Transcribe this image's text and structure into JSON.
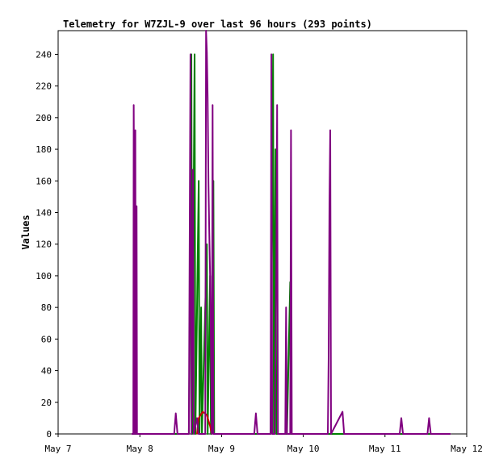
{
  "chart_data": {
    "type": "line",
    "title": "Telemetry for W7ZJL-9 over last 96 hours (293 points)",
    "xlabel": "",
    "ylabel": "Values",
    "x_ticks": [
      "May 7",
      "May 8",
      "May 9",
      "May 10",
      "May 11",
      "May 12"
    ],
    "xlim": [
      0,
      5
    ],
    "ylim": [
      0,
      255
    ],
    "y_ticks": [
      0,
      20,
      40,
      60,
      80,
      100,
      120,
      140,
      160,
      180,
      200,
      220,
      240
    ],
    "grid": false,
    "legend": "none",
    "series": [
      {
        "color": "#008000",
        "points": [
          [
            0.9,
            0
          ],
          [
            1.6,
            0
          ],
          [
            1.62,
            120
          ],
          [
            1.63,
            240
          ],
          [
            1.64,
            0
          ],
          [
            1.67,
            240
          ],
          [
            1.68,
            0
          ],
          [
            1.72,
            160
          ],
          [
            1.73,
            0
          ],
          [
            1.75,
            80
          ],
          [
            1.76,
            0
          ],
          [
            1.82,
            120
          ],
          [
            1.83,
            0
          ],
          [
            1.86,
            100
          ],
          [
            1.87,
            0
          ],
          [
            1.9,
            160
          ],
          [
            1.91,
            0
          ],
          [
            2.6,
            0
          ],
          [
            2.63,
            240
          ],
          [
            2.64,
            0
          ],
          [
            2.66,
            180
          ],
          [
            2.67,
            0
          ],
          [
            2.8,
            0
          ],
          [
            2.84,
            96
          ],
          [
            2.85,
            0
          ],
          [
            4.8,
            0
          ]
        ]
      },
      {
        "color": "#cc0000",
        "points": [
          [
            1.7,
            0
          ],
          [
            1.72,
            10
          ],
          [
            1.77,
            14
          ],
          [
            1.82,
            12
          ],
          [
            1.86,
            5
          ],
          [
            1.88,
            0
          ]
        ]
      },
      {
        "color": "#800080",
        "points": [
          [
            0.9,
            0
          ],
          [
            0.92,
            0
          ],
          [
            0.925,
            208
          ],
          [
            0.93,
            155
          ],
          [
            0.935,
            0
          ],
          [
            0.945,
            192
          ],
          [
            0.95,
            0
          ],
          [
            0.96,
            144
          ],
          [
            0.965,
            0
          ],
          [
            1.42,
            0
          ],
          [
            1.44,
            13
          ],
          [
            1.46,
            0
          ],
          [
            1.6,
            0
          ],
          [
            1.62,
            240
          ],
          [
            1.63,
            0
          ],
          [
            1.65,
            167
          ],
          [
            1.66,
            0
          ],
          [
            1.7,
            10
          ],
          [
            1.72,
            0
          ],
          [
            1.8,
            0
          ],
          [
            1.81,
            255
          ],
          [
            1.82,
            241
          ],
          [
            1.83,
            212
          ],
          [
            1.84,
            158
          ],
          [
            1.85,
            127
          ],
          [
            1.86,
            100
          ],
          [
            1.87,
            60
          ],
          [
            1.88,
            0
          ],
          [
            1.89,
            208
          ],
          [
            1.9,
            0
          ],
          [
            2.4,
            0
          ],
          [
            2.42,
            13
          ],
          [
            2.44,
            0
          ],
          [
            2.6,
            0
          ],
          [
            2.61,
            240
          ],
          [
            2.62,
            0
          ],
          [
            2.65,
            0
          ],
          [
            2.66,
            60
          ],
          [
            2.67,
            104
          ],
          [
            2.68,
            208
          ],
          [
            2.69,
            0
          ],
          [
            2.78,
            0
          ],
          [
            2.79,
            80
          ],
          [
            2.8,
            0
          ],
          [
            2.84,
            0
          ],
          [
            2.85,
            192
          ],
          [
            2.86,
            0
          ],
          [
            3.3,
            0
          ],
          [
            3.31,
            48
          ],
          [
            3.32,
            144
          ],
          [
            3.33,
            192
          ],
          [
            3.34,
            0
          ],
          [
            3.48,
            14
          ],
          [
            3.5,
            0
          ],
          [
            4.18,
            0
          ],
          [
            4.2,
            10
          ],
          [
            4.22,
            0
          ],
          [
            4.52,
            0
          ],
          [
            4.54,
            10
          ],
          [
            4.56,
            0
          ],
          [
            4.8,
            0
          ]
        ]
      }
    ]
  }
}
